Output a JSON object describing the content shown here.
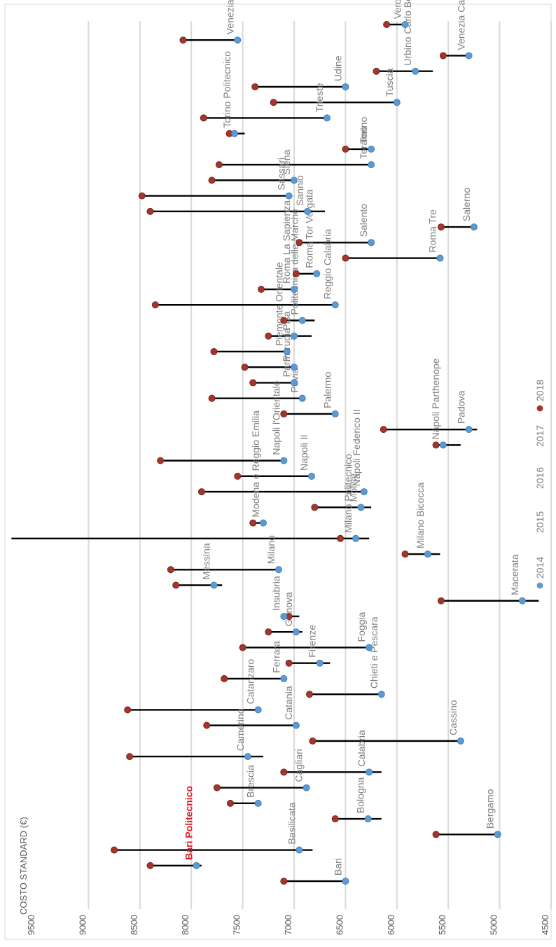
{
  "chart_data": {
    "type": "dumbbell",
    "orientation": "rotated-90-clockwise",
    "ylabel": "COSTO STANDARD (€)",
    "ylim": [
      4500,
      9500
    ],
    "yticks": [
      4500,
      5000,
      5500,
      6000,
      6500,
      7000,
      7500,
      8000,
      8500,
      9000,
      9500
    ],
    "grid": true,
    "legend": {
      "position": "bottom",
      "entries": [
        {
          "label": "2014",
          "color": "#5b9bd5",
          "marker": "circle"
        },
        {
          "label": "2015",
          "color": null
        },
        {
          "label": "2016",
          "color": null
        },
        {
          "label": "2017",
          "color": null
        },
        {
          "label": "2018",
          "color": "#a3352b",
          "marker": "circle"
        }
      ]
    },
    "colors": {
      "v2014": "#5b9bd5",
      "v2018": "#a3352b",
      "range": "#000000",
      "grid": "#d9d9d9",
      "highlight": "#e31e24"
    },
    "highlight_label": "Bari Politecnico",
    "universities": [
      {
        "name": "Bari",
        "v2014": 6500,
        "v2018": 7100,
        "min": 6480,
        "max": 7120
      },
      {
        "name": "Bari Politecnico",
        "v2014": 7950,
        "v2018": 8400,
        "min": 7900,
        "max": 8420
      },
      {
        "name": "Basilicata",
        "v2014": 6950,
        "v2018": 8750,
        "min": 6820,
        "max": 8760
      },
      {
        "name": "Bergamo",
        "v2014": 5020,
        "v2018": 5620,
        "min": 5000,
        "max": 5640
      },
      {
        "name": "Bologna",
        "v2014": 6280,
        "v2018": 6600,
        "min": 6150,
        "max": 6620
      },
      {
        "name": "Brescia",
        "v2014": 7350,
        "v2018": 7620,
        "min": 7330,
        "max": 7640
      },
      {
        "name": "Cagliari",
        "v2014": 6880,
        "v2018": 7750,
        "min": 6860,
        "max": 7760
      },
      {
        "name": "Calabria",
        "v2014": 6270,
        "v2018": 7100,
        "min": 6150,
        "max": 7120
      },
      {
        "name": "Camerino",
        "v2014": 7450,
        "v2018": 8600,
        "min": 7300,
        "max": 8610
      },
      {
        "name": "Cassino",
        "v2014": 5380,
        "v2018": 6820,
        "min": 5360,
        "max": 6840
      },
      {
        "name": "Catania",
        "v2014": 6980,
        "v2018": 7850,
        "min": 6970,
        "max": 7860
      },
      {
        "name": "Catanzaro",
        "v2014": 7350,
        "v2018": 8620,
        "min": 7330,
        "max": 8630
      },
      {
        "name": "Chieti e Pescara",
        "v2014": 6150,
        "v2018": 6850,
        "min": 6130,
        "max": 6870
      },
      {
        "name": "Ferrara",
        "v2014": 7100,
        "v2018": 7680,
        "min": 7080,
        "max": 7700
      },
      {
        "name": "Firenze",
        "v2014": 6750,
        "v2018": 7050,
        "min": 6650,
        "max": 7070
      },
      {
        "name": "Foggia",
        "v2014": 6270,
        "v2018": 7500,
        "min": 6250,
        "max": 7520
      },
      {
        "name": "Genova",
        "v2014": 6980,
        "v2018": 7250,
        "min": 6920,
        "max": 7270
      },
      {
        "name": "Insubria",
        "v2014": 7100,
        "v2018": 7050,
        "min": 6950,
        "max": 7120
      },
      {
        "name": "Macerata",
        "v2014": 4780,
        "v2018": 5570,
        "min": 4620,
        "max": 5590
      },
      {
        "name": "Messina",
        "v2014": 7780,
        "v2018": 8150,
        "min": 7700,
        "max": 8170
      },
      {
        "name": "Milano",
        "v2014": 7150,
        "v2018": 8200,
        "min": 7130,
        "max": 8220
      },
      {
        "name": "Milano Bicocca",
        "v2014": 5700,
        "v2018": 5920,
        "min": 5580,
        "max": 5940
      },
      {
        "name": "Milano Politecnico",
        "v2014": 6400,
        "v2018": 6550,
        "min": 6270,
        "max": 9750
      },
      {
        "name": "Modena e Reggio Emilia",
        "v2014": 7300,
        "v2018": 7400,
        "min": 7280,
        "max": 7420
      },
      {
        "name": "Molise",
        "v2014": 6350,
        "v2018": 6800,
        "min": 6250,
        "max": 6820
      },
      {
        "name": "Napoli Federico II",
        "v2014": 6320,
        "v2018": 7900,
        "min": 6300,
        "max": 7920
      },
      {
        "name": "Napoli II",
        "v2014": 6830,
        "v2018": 7550,
        "min": 6810,
        "max": 7570
      },
      {
        "name": "Napoli l'Orientale",
        "v2014": 7100,
        "v2018": 8300,
        "min": 7080,
        "max": 8320
      },
      {
        "name": "Napoli Parthenope",
        "v2014": 5550,
        "v2018": 5620,
        "min": 5380,
        "max": 5640
      },
      {
        "name": "Padova",
        "v2014": 5300,
        "v2018": 6130,
        "min": 5220,
        "max": 6150
      },
      {
        "name": "Palermo",
        "v2014": 6600,
        "v2018": 7100,
        "min": 6580,
        "max": 7120
      },
      {
        "name": "Pavia",
        "v2014": 6920,
        "v2018": 7800,
        "min": 6900,
        "max": 7820
      },
      {
        "name": "Parma",
        "v2014": 7000,
        "v2018": 7400,
        "min": 6980,
        "max": 7420
      },
      {
        "name": "Perugia",
        "v2014": 7000,
        "v2018": 7480,
        "min": 6980,
        "max": 7500
      },
      {
        "name": "Piemonte Orientale",
        "v2014": 7070,
        "v2018": 7780,
        "min": 7050,
        "max": 7800
      },
      {
        "name": "Pisa",
        "v2014": 7000,
        "v2018": 7250,
        "min": 6830,
        "max": 7270
      },
      {
        "name": "Politecnica delle Marche",
        "v2014": 6920,
        "v2018": 7100,
        "min": 6800,
        "max": 7120
      },
      {
        "name": "Reggio Calabria",
        "v2014": 6600,
        "v2018": 8350,
        "min": 6580,
        "max": 8370
      },
      {
        "name": "Roma La Sapienza",
        "v2014": 7000,
        "v2018": 7320,
        "min": 6980,
        "max": 7340
      },
      {
        "name": "Roma Tor Vergata",
        "v2014": 6780,
        "v2018": 6980,
        "min": 6760,
        "max": 7000
      },
      {
        "name": "Roma Tre",
        "v2014": 5580,
        "v2018": 6500,
        "min": 5560,
        "max": 6520
      },
      {
        "name": "Salento",
        "v2014": 6250,
        "v2018": 6950,
        "min": 6230,
        "max": 6970
      },
      {
        "name": "Salerno",
        "v2014": 5250,
        "v2018": 5570,
        "min": 5230,
        "max": 5590
      },
      {
        "name": "Sannio",
        "v2014": 6870,
        "v2018": 8400,
        "min": 6700,
        "max": 8420
      },
      {
        "name": "Sassari",
        "v2014": 7050,
        "v2018": 8480,
        "min": 7030,
        "max": 8500
      },
      {
        "name": "Siena",
        "v2014": 7000,
        "v2018": 7800,
        "min": 6980,
        "max": 7820
      },
      {
        "name": "Teramo",
        "v2014": 6250,
        "v2018": 7730,
        "min": 6230,
        "max": 7750
      },
      {
        "name": "Torino",
        "v2014": 6250,
        "v2018": 6500,
        "min": 6230,
        "max": 6520
      },
      {
        "name": "Torino Politecnico",
        "v2014": 7580,
        "v2018": 7630,
        "min": 7480,
        "max": 7650
      },
      {
        "name": "Trieste",
        "v2014": 6680,
        "v2018": 7880,
        "min": 6660,
        "max": 7900
      },
      {
        "name": "Tuscia",
        "v2014": 6000,
        "v2018": 7200,
        "min": 5980,
        "max": 7220
      },
      {
        "name": "Udine",
        "v2014": 6500,
        "v2018": 7380,
        "min": 6480,
        "max": 7400
      },
      {
        "name": "Urbino Carlo Bo",
        "v2014": 5820,
        "v2018": 6200,
        "min": 5650,
        "max": 6220
      },
      {
        "name": "Venezia Ca' Foscari",
        "v2014": 5300,
        "v2018": 5550,
        "min": 5280,
        "max": 5570
      },
      {
        "name": "Venezia Iuav",
        "v2014": 7550,
        "v2018": 8080,
        "min": 7530,
        "max": 8100
      },
      {
        "name": "Verona",
        "v2014": 5920,
        "v2018": 6100,
        "min": 5900,
        "max": 6120
      }
    ]
  }
}
